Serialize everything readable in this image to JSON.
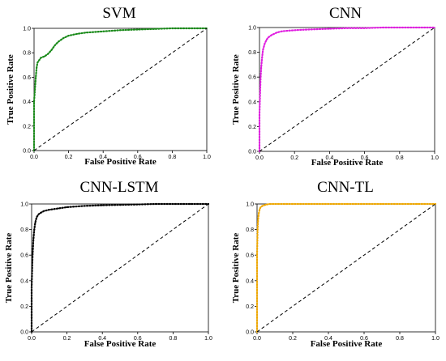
{
  "chart_data": [
    {
      "type": "line",
      "title": "SVM",
      "xlabel": "False Positive Rate",
      "ylabel": "True Positive Rate",
      "xlim": [
        0,
        1
      ],
      "ylim": [
        0,
        1
      ],
      "xticks": [
        "0.0",
        "0.2",
        "0.4",
        "0.6",
        "0.8",
        "1.0"
      ],
      "yticks": [
        "0.0",
        "0.2",
        "0.4",
        "0.6",
        "0.8",
        "1.0"
      ],
      "grid": false,
      "series": [
        {
          "color": "#1a8a1a",
          "style": "dotted",
          "x": [
            0.0,
            0.0,
            0.005,
            0.01,
            0.015,
            0.02,
            0.03,
            0.04,
            0.06,
            0.08,
            0.1,
            0.12,
            0.14,
            0.17,
            0.2,
            0.25,
            0.3,
            0.4,
            0.5,
            0.6,
            0.7,
            0.8,
            0.9,
            1.0
          ],
          "y": [
            0.0,
            0.4,
            0.5,
            0.6,
            0.68,
            0.72,
            0.74,
            0.76,
            0.77,
            0.79,
            0.82,
            0.86,
            0.89,
            0.92,
            0.94,
            0.955,
            0.965,
            0.975,
            0.985,
            0.99,
            0.995,
            1.0,
            1.0,
            1.0
          ]
        },
        {
          "color": "#000000",
          "style": "dashed",
          "x": [
            0,
            1
          ],
          "y": [
            0,
            1
          ]
        }
      ]
    },
    {
      "type": "line",
      "title": "CNN",
      "xlabel": "False Positive Rate",
      "ylabel": "True Positive Rate",
      "xlim": [
        0,
        1
      ],
      "ylim": [
        0,
        1
      ],
      "xticks": [
        "0.0",
        "0.2",
        "0.4",
        "0.6",
        "0.8",
        "1.0"
      ],
      "yticks": [
        "0.0",
        "0.2",
        "0.4",
        "0.6",
        "0.8",
        "1.0"
      ],
      "grid": false,
      "series": [
        {
          "color": "#e020e0",
          "style": "dotted",
          "x": [
            0.0,
            0.0,
            0.003,
            0.006,
            0.01,
            0.015,
            0.02,
            0.03,
            0.04,
            0.05,
            0.07,
            0.1,
            0.13,
            0.17,
            0.22,
            0.3,
            0.4,
            0.5,
            0.6,
            0.7,
            0.8,
            0.9,
            1.0
          ],
          "y": [
            0.0,
            0.3,
            0.45,
            0.58,
            0.68,
            0.76,
            0.82,
            0.87,
            0.9,
            0.92,
            0.94,
            0.96,
            0.97,
            0.975,
            0.98,
            0.985,
            0.99,
            0.995,
            0.995,
            1.0,
            1.0,
            1.0,
            1.0
          ]
        },
        {
          "color": "#000000",
          "style": "dashed",
          "x": [
            0,
            1
          ],
          "y": [
            0,
            1
          ]
        }
      ]
    },
    {
      "type": "line",
      "title": "CNN-LSTM",
      "xlabel": "False Positive Rate",
      "ylabel": "True Positive Rate",
      "xlim": [
        0,
        1
      ],
      "ylim": [
        0,
        1
      ],
      "xticks": [
        "0.0",
        "0.2",
        "0.4",
        "0.6",
        "0.8",
        "1.0"
      ],
      "yticks": [
        "0.0",
        "0.2",
        "0.4",
        "0.6",
        "0.8",
        "1.0"
      ],
      "grid": false,
      "series": [
        {
          "color": "#000000",
          "style": "dotted",
          "x": [
            0.0,
            0.0,
            0.003,
            0.006,
            0.01,
            0.015,
            0.02,
            0.025,
            0.03,
            0.04,
            0.05,
            0.07,
            0.1,
            0.15,
            0.2,
            0.3,
            0.4,
            0.5,
            0.6,
            0.7,
            0.8,
            0.9,
            1.0
          ],
          "y": [
            0.0,
            0.35,
            0.5,
            0.62,
            0.72,
            0.8,
            0.85,
            0.88,
            0.9,
            0.92,
            0.93,
            0.945,
            0.955,
            0.965,
            0.975,
            0.985,
            0.99,
            0.993,
            0.996,
            1.0,
            1.0,
            1.0,
            1.0
          ]
        },
        {
          "color": "#000000",
          "style": "dashed",
          "x": [
            0,
            1
          ],
          "y": [
            0,
            1
          ]
        }
      ]
    },
    {
      "type": "line",
      "title": "CNN-TL",
      "xlabel": "False Positive Rate",
      "ylabel": "True Positive Rate",
      "xlim": [
        0,
        1
      ],
      "ylim": [
        0,
        1
      ],
      "xticks": [
        "0.0",
        "0.2",
        "0.4",
        "0.6",
        "0.8",
        "1.0"
      ],
      "yticks": [
        "0.0",
        "0.2",
        "0.4",
        "0.6",
        "0.8",
        "1.0"
      ],
      "grid": false,
      "series": [
        {
          "color": "#f0a800",
          "style": "dotted",
          "x": [
            0.0,
            0.0,
            0.003,
            0.006,
            0.01,
            0.015,
            0.02,
            0.03,
            0.04,
            0.05,
            0.07,
            0.1,
            0.2,
            0.3,
            0.4,
            0.5,
            0.6,
            0.7,
            0.8,
            0.9,
            1.0
          ],
          "y": [
            0.0,
            0.6,
            0.8,
            0.88,
            0.93,
            0.96,
            0.975,
            0.985,
            0.99,
            0.995,
            1.0,
            1.0,
            1.0,
            1.0,
            1.0,
            1.0,
            1.0,
            1.0,
            1.0,
            1.0,
            1.0
          ]
        },
        {
          "color": "#000000",
          "style": "dashed",
          "x": [
            0,
            1
          ],
          "y": [
            0,
            1
          ]
        }
      ]
    }
  ]
}
